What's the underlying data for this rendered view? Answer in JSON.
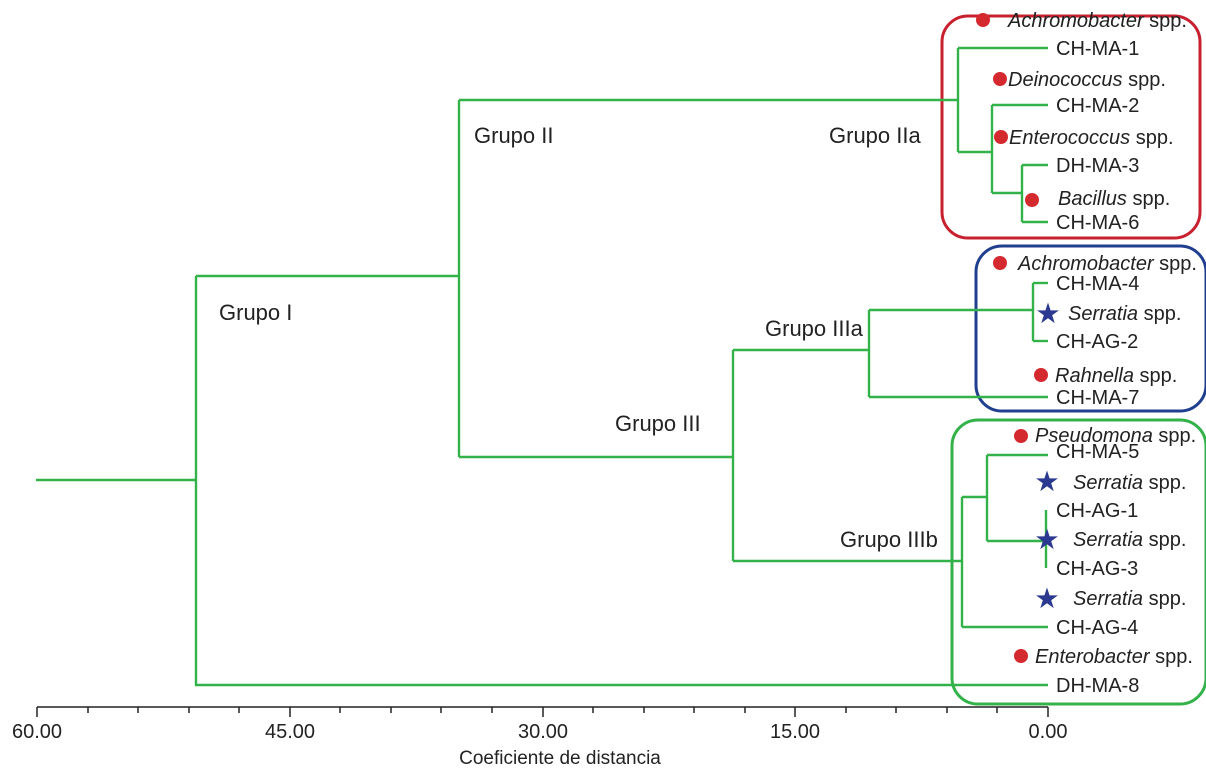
{
  "groups": [
    {
      "label": "Grupo I"
    },
    {
      "label": "Grupo II"
    },
    {
      "label": "Grupo IIa"
    },
    {
      "label": "Grupo III"
    },
    {
      "label": "Grupo IIIa"
    },
    {
      "label": "Grupo IIIb"
    }
  ],
  "leaves": [
    {
      "id": "CH-MA-1",
      "genus": "Achromobacter",
      "suffix": " spp.",
      "marker": "dot"
    },
    {
      "id": "CH-MA-2",
      "genus": "Deinococcus",
      "suffix": " spp.",
      "marker": "dot"
    },
    {
      "id": "DH-MA-3",
      "genus": "Enterococcus",
      "suffix": " spp.",
      "marker": "dot"
    },
    {
      "id": "CH-MA-6",
      "genus": "Bacillus",
      "suffix": " spp.",
      "marker": "dot"
    },
    {
      "id": "CH-MA-4",
      "genus": "Achromobacter",
      "suffix": " spp.",
      "marker": "dot"
    },
    {
      "id": "CH-AG-2",
      "genus": "Serratia",
      "suffix": " spp.",
      "marker": "star"
    },
    {
      "id": "CH-MA-7",
      "genus": "Rahnella",
      "suffix": " spp.",
      "marker": "dot"
    },
    {
      "id": "CH-MA-5",
      "genus": "Pseudomona",
      "suffix": " spp.",
      "marker": "dot"
    },
    {
      "id": "CH-AG-1",
      "genus": "Serratia",
      "suffix": " spp.",
      "marker": "star"
    },
    {
      "id": "CH-AG-3",
      "genus": "Serratia",
      "suffix": " spp.",
      "marker": "star"
    },
    {
      "id": "CH-AG-4",
      "genus": "Serratia",
      "suffix": " spp.",
      "marker": "star"
    },
    {
      "id": "DH-MA-8",
      "genus": "Enterobacter",
      "suffix": " spp.",
      "marker": "dot"
    }
  ],
  "axis": {
    "title": "Coeficiente de distancia",
    "ticks": [
      "60.00",
      "45.00",
      "30.00",
      "15.00",
      "0.00"
    ]
  },
  "colors": {
    "branch": "#33b24a",
    "dot": "#d42a2f",
    "star": "#2b3990",
    "box_IIa": "#c8202f",
    "box_IIIa": "#203f8f",
    "box_IIIb": "#33b24a"
  }
}
